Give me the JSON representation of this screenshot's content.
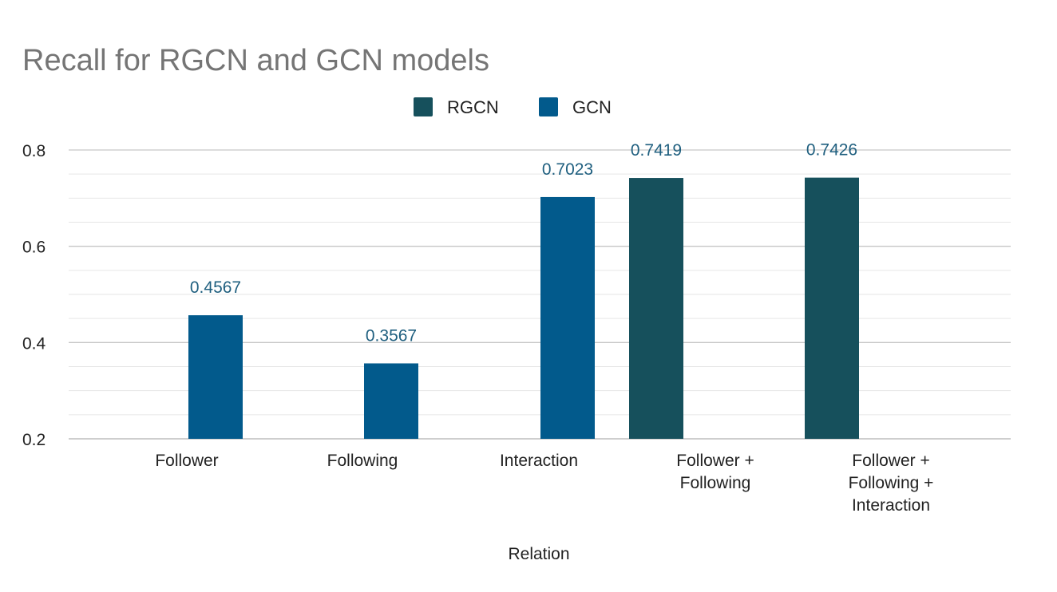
{
  "chart_data": {
    "type": "bar",
    "title": "Recall for RGCN and GCN models",
    "xlabel": "Relation",
    "ylabel": "",
    "ylim": [
      0.2,
      0.8
    ],
    "yticks": [
      "0.2",
      "0.4",
      "0.6",
      "0.8"
    ],
    "grid": true,
    "minor_grid": true,
    "legend": "top-center",
    "categories": [
      [
        "Follower"
      ],
      [
        "Following"
      ],
      [
        "Interaction"
      ],
      [
        "Follower +",
        "Following"
      ],
      [
        "Follower +",
        "Following +",
        "Interaction"
      ]
    ],
    "series": [
      {
        "name": "RGCN",
        "color": "#16505c",
        "values": [
          null,
          null,
          null,
          0.7419,
          0.7426
        ],
        "labels": [
          "",
          "",
          "",
          "0.7419",
          "0.7426"
        ]
      },
      {
        "name": "GCN",
        "color": "#025a8c",
        "values": [
          0.4567,
          0.3567,
          0.7023,
          null,
          null
        ],
        "labels": [
          "0.4567",
          "0.3567",
          "0.7023",
          "",
          ""
        ]
      }
    ],
    "label_color": "#1f5f7f"
  }
}
